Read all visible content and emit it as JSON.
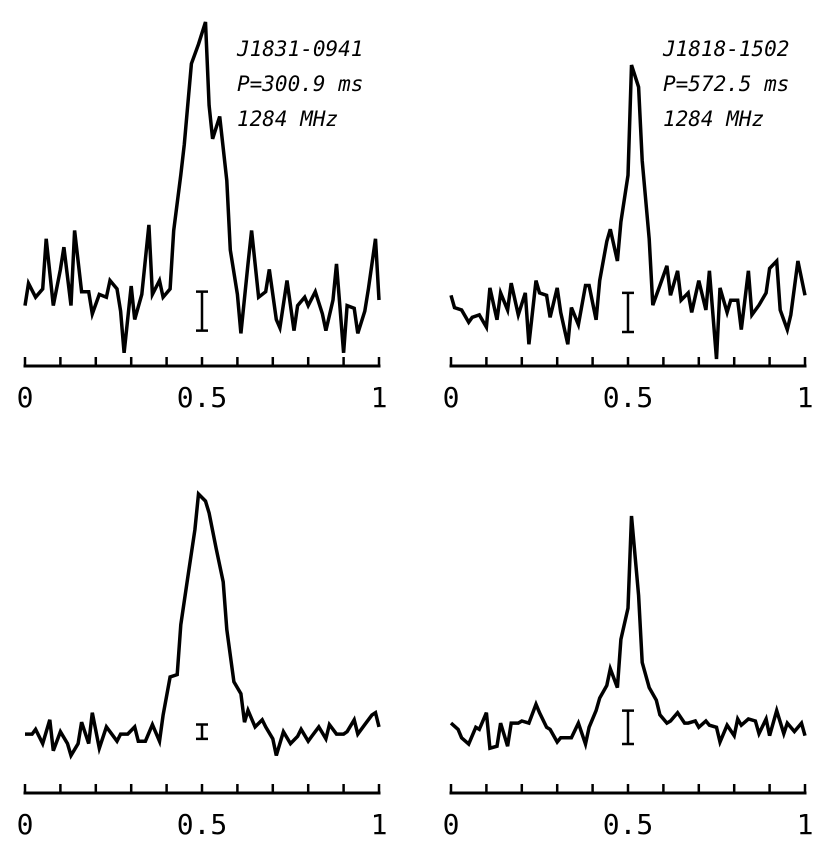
{
  "chart_data": [
    {
      "type": "line",
      "color": "#000000",
      "annotations": [
        "J1831-0941",
        "P=300.9 ms",
        "1284 MHz"
      ],
      "x": [
        0.0,
        0.01,
        0.03,
        0.05,
        0.06,
        0.08,
        0.1,
        0.11,
        0.13,
        0.14,
        0.16,
        0.18,
        0.19,
        0.21,
        0.23,
        0.24,
        0.26,
        0.27,
        0.28,
        0.3,
        0.31,
        0.33,
        0.35,
        0.36,
        0.38,
        0.39,
        0.41,
        0.42,
        0.44,
        0.45,
        0.47,
        0.49,
        0.51,
        0.52,
        0.53,
        0.55,
        0.57,
        0.58,
        0.6,
        0.61,
        0.63,
        0.64,
        0.66,
        0.68,
        0.69,
        0.71,
        0.72,
        0.74,
        0.76,
        0.77,
        0.79,
        0.8,
        0.82,
        0.84,
        0.85,
        0.87,
        0.88,
        0.9,
        0.91,
        0.93,
        0.94,
        0.96,
        0.97,
        0.99,
        1.0
      ],
      "values": [
        -0.02,
        0.06,
        0.01,
        0.04,
        0.22,
        -0.02,
        0.11,
        0.19,
        -0.02,
        0.25,
        0.03,
        0.03,
        -0.05,
        0.02,
        0.01,
        0.07,
        0.04,
        -0.04,
        -0.19,
        0.05,
        -0.07,
        0.02,
        0.27,
        0.02,
        0.07,
        0.01,
        0.04,
        0.25,
        0.45,
        0.56,
        0.85,
        0.92,
        1.0,
        0.7,
        0.58,
        0.66,
        0.43,
        0.18,
        0.02,
        -0.12,
        0.13,
        0.25,
        0.01,
        0.03,
        0.11,
        -0.07,
        -0.1,
        0.07,
        -0.11,
        -0.02,
        0.01,
        -0.02,
        0.03,
        -0.05,
        -0.11,
        0.0,
        0.13,
        -0.19,
        -0.02,
        -0.03,
        -0.12,
        -0.04,
        0.04,
        0.22,
        0.0
      ],
      "error_bar": {
        "x": 0.5,
        "y": -0.04,
        "error": 0.07
      },
      "xlim": [
        0,
        1
      ],
      "ylim": [
        -0.3,
        1.0
      ],
      "xticks": [
        0,
        0.5,
        1
      ],
      "xminorticks": [
        0.1,
        0.2,
        0.3,
        0.4,
        0.6,
        0.7,
        0.8,
        0.9
      ]
    },
    {
      "type": "line",
      "color": "#000000",
      "annotations": [
        "J1818-1502",
        "P=572.5 ms",
        "1284 MHz"
      ],
      "x": [
        0.0,
        0.01,
        0.03,
        0.05,
        0.06,
        0.08,
        0.1,
        0.11,
        0.13,
        0.14,
        0.16,
        0.17,
        0.19,
        0.21,
        0.22,
        0.24,
        0.25,
        0.27,
        0.28,
        0.3,
        0.31,
        0.33,
        0.34,
        0.36,
        0.38,
        0.39,
        0.41,
        0.42,
        0.44,
        0.45,
        0.47,
        0.48,
        0.5,
        0.51,
        0.53,
        0.54,
        0.56,
        0.57,
        0.59,
        0.61,
        0.62,
        0.64,
        0.65,
        0.67,
        0.68,
        0.7,
        0.72,
        0.73,
        0.75,
        0.76,
        0.78,
        0.79,
        0.81,
        0.82,
        0.84,
        0.85,
        0.87,
        0.89,
        0.9,
        0.92,
        0.93,
        0.95,
        0.96,
        0.98,
        1.0
      ],
      "values": [
        0.06,
        0.01,
        0.0,
        -0.05,
        -0.03,
        -0.02,
        -0.07,
        0.09,
        -0.04,
        0.07,
        0.0,
        0.11,
        -0.02,
        0.07,
        -0.14,
        0.12,
        0.07,
        0.06,
        -0.03,
        0.09,
        -0.01,
        -0.14,
        0.01,
        -0.06,
        0.1,
        0.1,
        -0.04,
        0.12,
        0.28,
        0.33,
        0.2,
        0.36,
        0.55,
        1.0,
        0.91,
        0.61,
        0.29,
        0.02,
        0.1,
        0.18,
        0.06,
        0.16,
        0.04,
        0.07,
        -0.01,
        0.12,
        0.0,
        0.16,
        -0.2,
        0.09,
        -0.01,
        0.04,
        0.04,
        -0.08,
        0.16,
        -0.02,
        0.02,
        0.07,
        0.17,
        0.2,
        0.0,
        -0.08,
        -0.02,
        0.2,
        0.06
      ],
      "error_bar": {
        "x": 0.5,
        "y": -0.01,
        "error": 0.08
      },
      "xlim": [
        0,
        1
      ],
      "ylim": [
        -0.3,
        1.0
      ],
      "xticks": [
        0,
        0.5,
        1
      ],
      "xminorticks": [
        0.1,
        0.2,
        0.3,
        0.4,
        0.6,
        0.7,
        0.8,
        0.9
      ]
    },
    {
      "type": "line",
      "color": "#000000",
      "x": [
        0.0,
        0.02,
        0.03,
        0.05,
        0.07,
        0.08,
        0.1,
        0.12,
        0.13,
        0.15,
        0.16,
        0.18,
        0.19,
        0.21,
        0.23,
        0.24,
        0.26,
        0.27,
        0.29,
        0.31,
        0.32,
        0.34,
        0.36,
        0.38,
        0.39,
        0.41,
        0.43,
        0.44,
        0.46,
        0.48,
        0.49,
        0.51,
        0.52,
        0.54,
        0.56,
        0.57,
        0.59,
        0.61,
        0.62,
        0.63,
        0.65,
        0.67,
        0.68,
        0.7,
        0.71,
        0.73,
        0.75,
        0.77,
        0.78,
        0.8,
        0.81,
        0.83,
        0.85,
        0.86,
        0.88,
        0.9,
        0.91,
        0.93,
        0.94,
        0.96,
        0.98,
        0.99,
        1.0
      ],
      "values": [
        -0.01,
        -0.01,
        0.01,
        -0.05,
        0.05,
        -0.08,
        0.0,
        -0.05,
        -0.1,
        -0.05,
        0.04,
        -0.05,
        0.08,
        -0.07,
        0.02,
        0.0,
        -0.04,
        -0.01,
        -0.01,
        0.02,
        -0.04,
        -0.04,
        0.03,
        -0.04,
        0.07,
        0.23,
        0.24,
        0.45,
        0.65,
        0.85,
        1.0,
        0.97,
        0.92,
        0.77,
        0.63,
        0.43,
        0.21,
        0.16,
        0.04,
        0.09,
        0.02,
        0.05,
        0.02,
        -0.03,
        -0.1,
        0.0,
        -0.05,
        -0.02,
        0.01,
        -0.04,
        -0.02,
        0.02,
        -0.03,
        0.03,
        -0.01,
        -0.01,
        0.0,
        0.05,
        -0.01,
        0.03,
        0.07,
        0.08,
        0.02
      ],
      "error_bar": {
        "x": 0.5,
        "y": 0.0,
        "error": 0.03
      },
      "xlim": [
        0,
        1
      ],
      "ylim": [
        -0.3,
        1.0
      ],
      "xticks": [
        0,
        0.5,
        1
      ],
      "xminorticks": [
        0.1,
        0.2,
        0.3,
        0.4,
        0.6,
        0.7,
        0.8,
        0.9
      ]
    },
    {
      "type": "line",
      "color": "#000000",
      "x": [
        0.0,
        0.02,
        0.03,
        0.05,
        0.07,
        0.08,
        0.1,
        0.11,
        0.13,
        0.14,
        0.16,
        0.17,
        0.19,
        0.2,
        0.22,
        0.24,
        0.25,
        0.27,
        0.28,
        0.3,
        0.31,
        0.33,
        0.34,
        0.36,
        0.38,
        0.39,
        0.41,
        0.42,
        0.44,
        0.45,
        0.47,
        0.48,
        0.5,
        0.51,
        0.53,
        0.54,
        0.56,
        0.58,
        0.59,
        0.61,
        0.62,
        0.64,
        0.66,
        0.67,
        0.69,
        0.7,
        0.72,
        0.73,
        0.75,
        0.76,
        0.78,
        0.8,
        0.81,
        0.82,
        0.84,
        0.86,
        0.87,
        0.89,
        0.9,
        0.92,
        0.94,
        0.95,
        0.97,
        0.99,
        1.0
      ],
      "values": [
        0.01,
        -0.02,
        -0.06,
        -0.09,
        -0.01,
        -0.02,
        0.06,
        -0.11,
        -0.1,
        0.01,
        -0.1,
        0.01,
        0.01,
        0.02,
        0.01,
        0.1,
        0.06,
        -0.01,
        -0.02,
        -0.08,
        -0.06,
        -0.06,
        -0.06,
        0.01,
        -0.09,
        -0.01,
        0.07,
        0.13,
        0.19,
        0.27,
        0.18,
        0.41,
        0.56,
        1.0,
        0.62,
        0.3,
        0.18,
        0.12,
        0.05,
        0.01,
        0.02,
        0.06,
        0.01,
        0.01,
        0.02,
        -0.01,
        0.02,
        0.0,
        -0.01,
        -0.08,
        0.0,
        -0.05,
        0.03,
        0.0,
        0.03,
        0.02,
        -0.04,
        0.03,
        -0.05,
        0.07,
        -0.04,
        0.01,
        -0.03,
        0.01,
        -0.05
      ],
      "error_bar": {
        "x": 0.5,
        "y": -0.01,
        "error": 0.08
      },
      "xlim": [
        0,
        1
      ],
      "ylim": [
        -0.3,
        1.0
      ],
      "xticks": [
        0,
        0.5,
        1
      ],
      "xminorticks": [
        0.1,
        0.2,
        0.3,
        0.4,
        0.6,
        0.7,
        0.8,
        0.9
      ]
    }
  ]
}
